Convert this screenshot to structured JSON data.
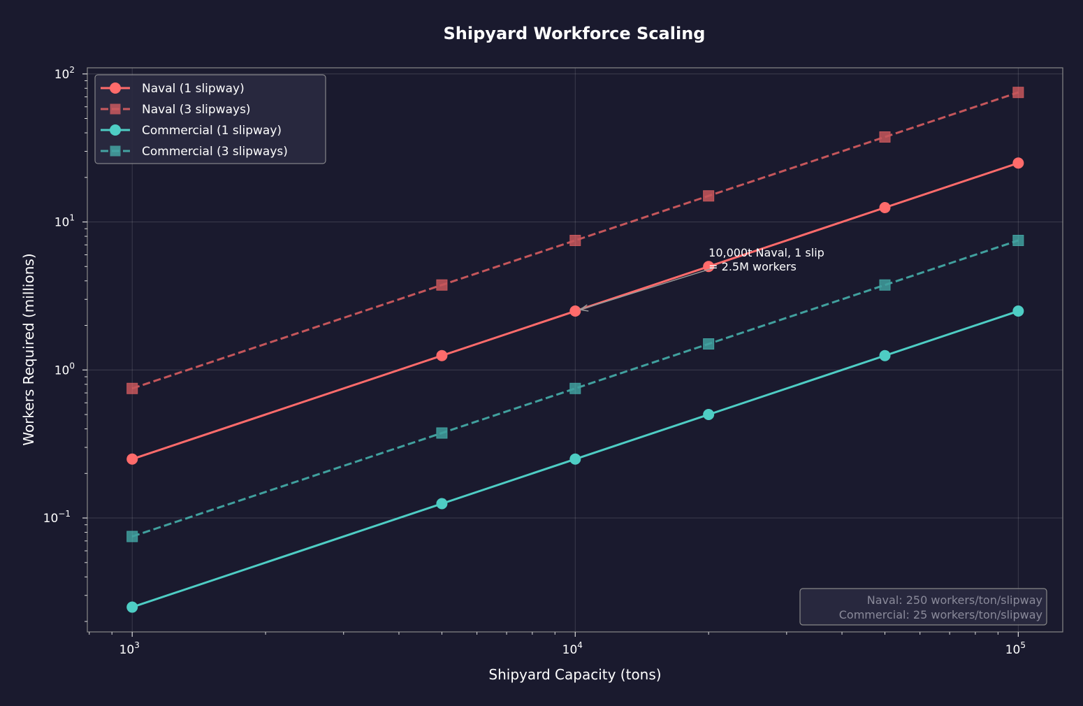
{
  "chart_data": {
    "type": "line",
    "title": "Shipyard Workforce Scaling",
    "xlabel": "Shipyard Capacity (tons)",
    "ylabel": "Workers Required (millions)",
    "x_scale": "log",
    "y_scale": "log",
    "xlim": [
      792,
      126000
    ],
    "ylim": [
      0.017,
      110
    ],
    "x_ticks": [
      {
        "value": 1000,
        "base": "10",
        "exp": "3"
      },
      {
        "value": 10000,
        "base": "10",
        "exp": "4"
      },
      {
        "value": 100000,
        "base": "10",
        "exp": "5"
      }
    ],
    "y_ticks": [
      {
        "value": 0.1,
        "base": "10",
        "exp": "−1"
      },
      {
        "value": 1,
        "base": "10",
        "exp": "0"
      },
      {
        "value": 10,
        "base": "10",
        "exp": "1"
      },
      {
        "value": 100,
        "base": "10",
        "exp": "2"
      }
    ],
    "grid": true,
    "legend_position": "top-left",
    "x": [
      1000,
      5000,
      10000,
      20000,
      50000,
      100000
    ],
    "series": [
      {
        "name": "Naval (1 slipway)",
        "values": [
          0.25,
          1.25,
          2.5,
          5,
          12.5,
          25
        ],
        "color": "#ff6b6b",
        "marker": "circle",
        "dashed": false
      },
      {
        "name": "Naval (3 slipways)",
        "values": [
          0.75,
          3.75,
          7.5,
          15,
          37.5,
          75
        ],
        "color": "#ff6b6b",
        "marker": "square",
        "dashed": true
      },
      {
        "name": "Commercial (1 slipway)",
        "values": [
          0.025,
          0.125,
          0.25,
          0.5,
          1.25,
          2.5
        ],
        "color": "#4ecdc4",
        "marker": "circle",
        "dashed": false
      },
      {
        "name": "Commercial (3 slipways)",
        "values": [
          0.075,
          0.375,
          0.75,
          1.5,
          3.75,
          7.5
        ],
        "color": "#4ecdc4",
        "marker": "square",
        "dashed": true
      }
    ],
    "annotation": {
      "lines": [
        "10,000t Naval, 1 slip",
        "= 2.5M workers"
      ],
      "point": [
        10000,
        2.5
      ],
      "text_at": [
        20000,
        4.6
      ]
    },
    "info_box": {
      "lines": [
        "Naval: 250 workers/ton/slipway",
        "Commercial: 25 workers/ton/slipway"
      ],
      "position": "bottom-right"
    }
  },
  "colors": {
    "background": "#1a1a2e",
    "naval": "#ff6b6b",
    "commercial": "#4ecdc4"
  }
}
